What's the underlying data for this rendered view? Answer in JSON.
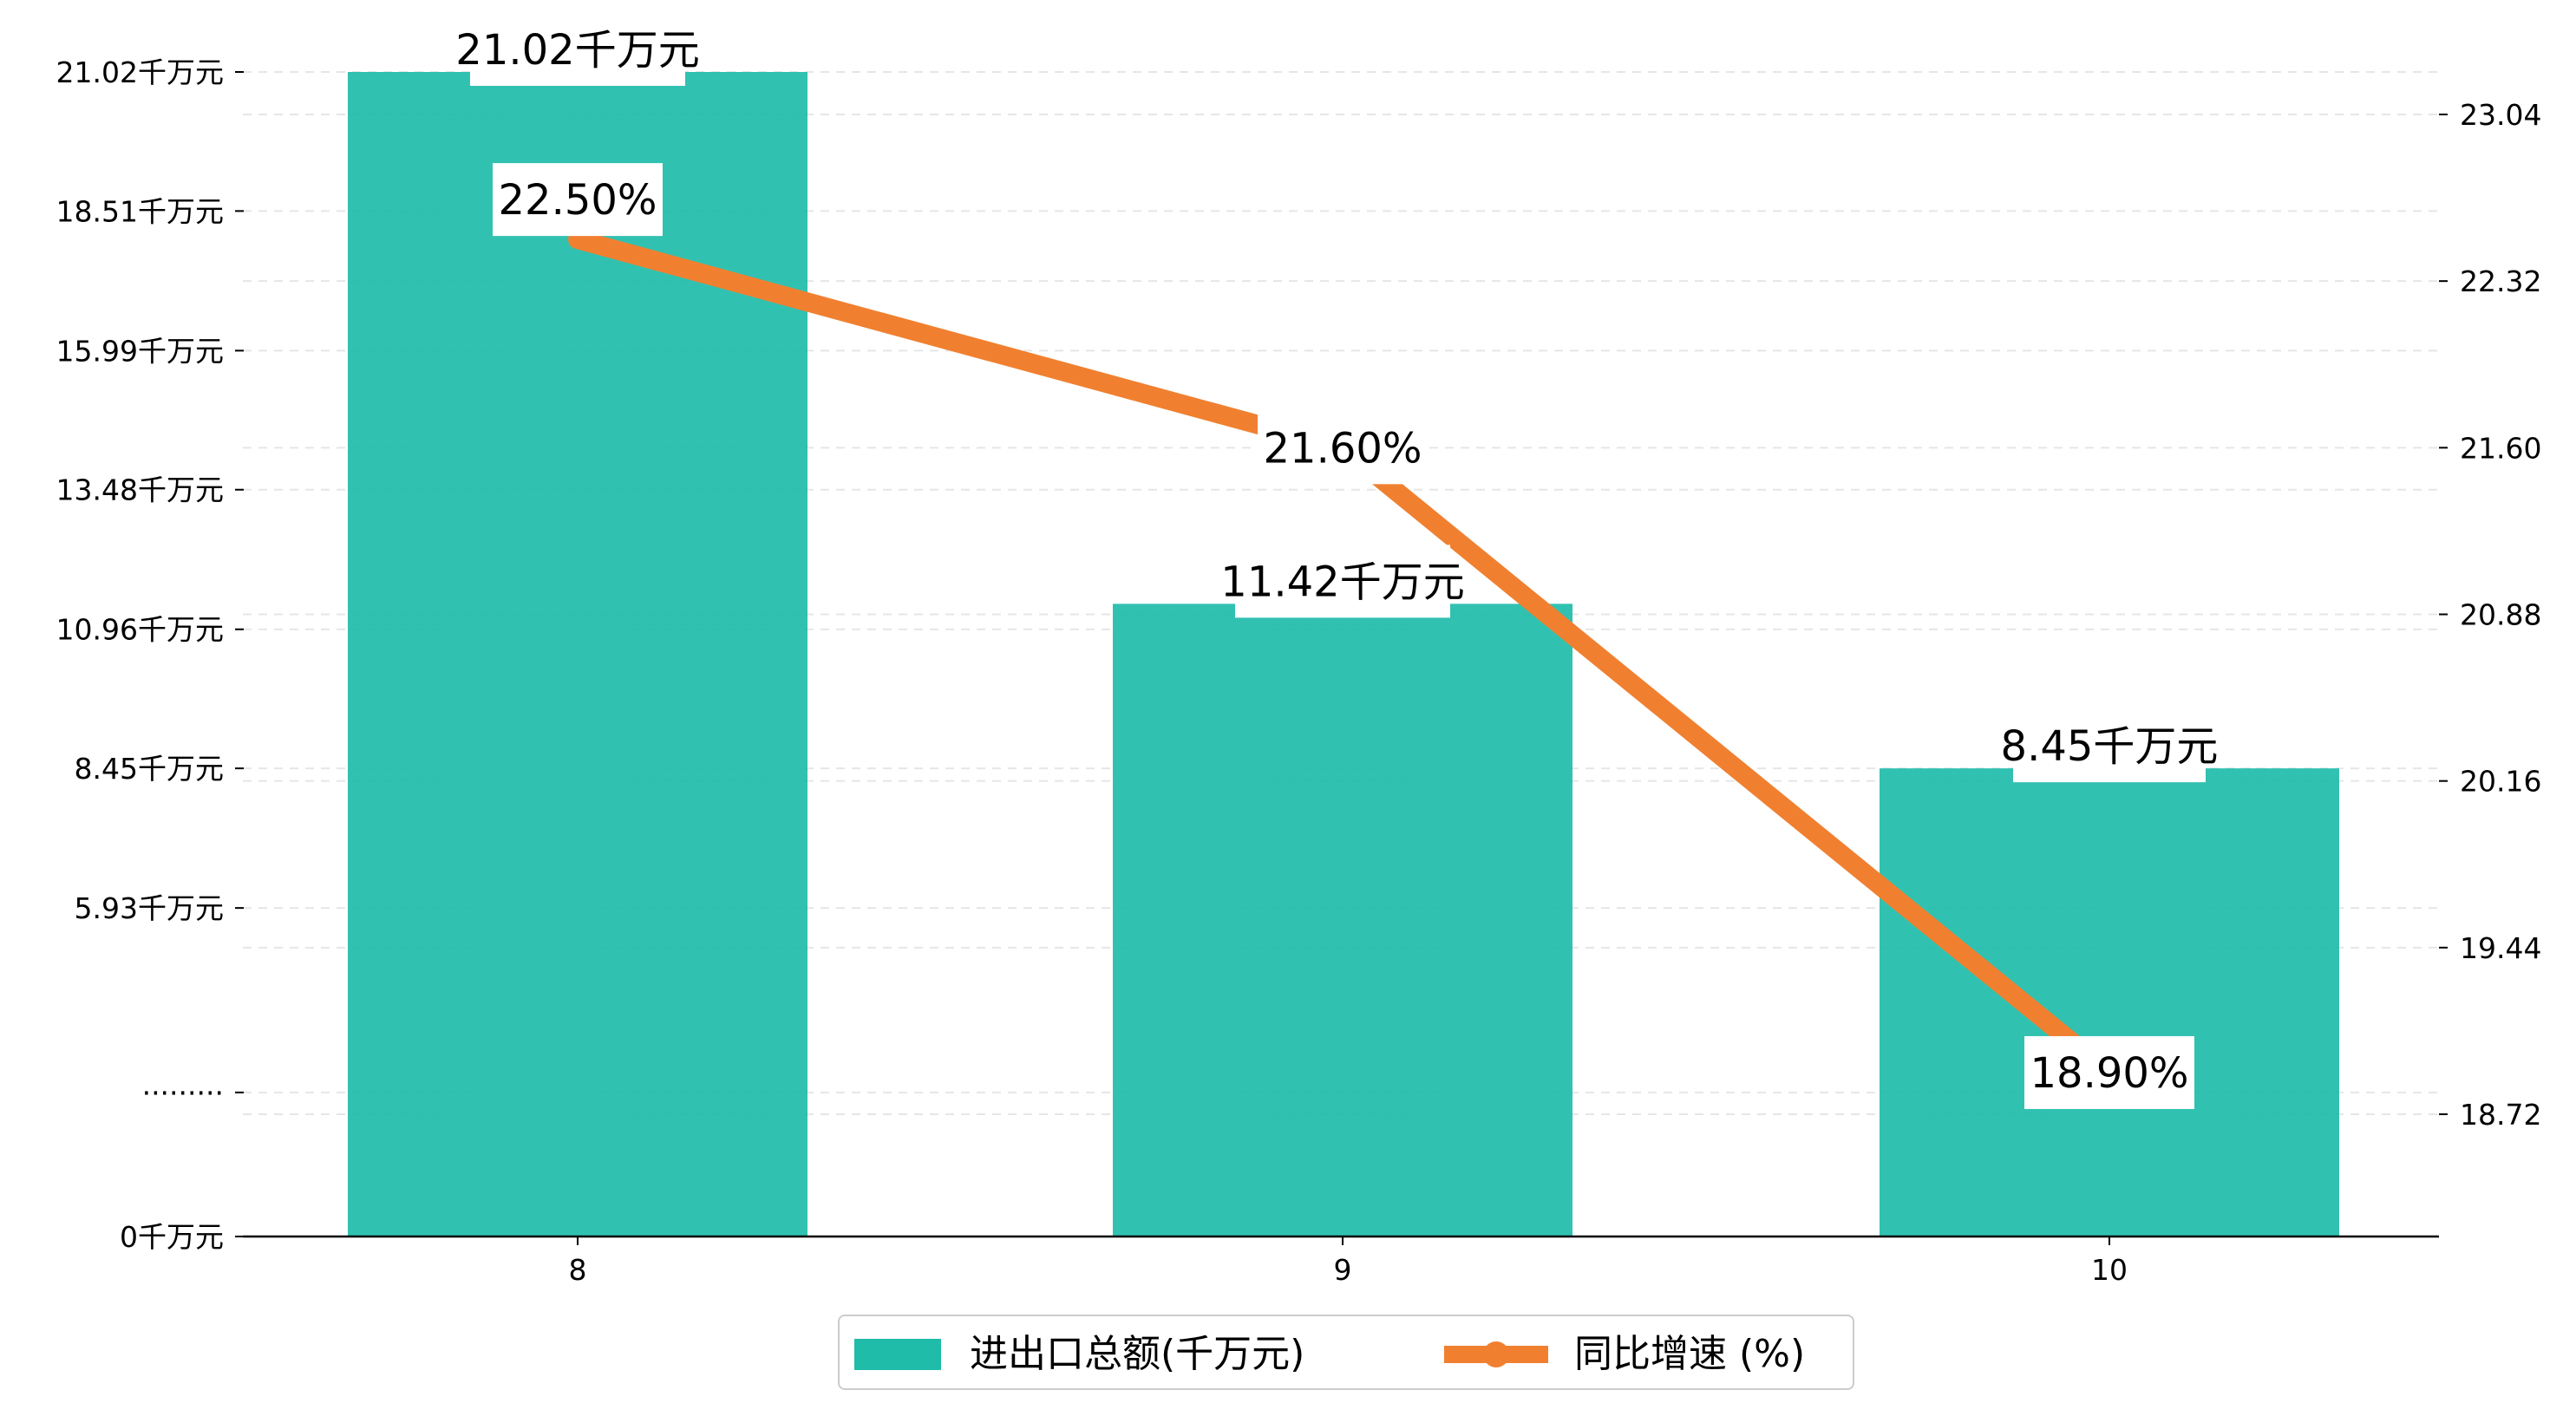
{
  "chart_data": {
    "type": "bar",
    "categories": [
      "8",
      "9",
      "10"
    ],
    "series": [
      {
        "name": "进出口总额(千万元)",
        "kind": "bar",
        "axis": "left",
        "color": "#20BCAA",
        "values": [
          21.02,
          11.42,
          8.45
        ],
        "value_labels": [
          "21.02千万元",
          "11.42千万元",
          "8.45千万元"
        ]
      },
      {
        "name": "同比增速 (%)",
        "kind": "line",
        "axis": "right",
        "color": "#F08030",
        "values": [
          22.5,
          21.6,
          18.9
        ],
        "value_labels": [
          "22.50%",
          "21.60%",
          "18.90%"
        ]
      }
    ],
    "left_axis": {
      "ylim": [
        0,
        21.02
      ],
      "ticks": [
        {
          "value": 0,
          "label": "0千万元"
        },
        {
          "value": 2.6,
          "label": "·········"
        },
        {
          "value": 5.93,
          "label": "5.93千万元"
        },
        {
          "value": 8.45,
          "label": "8.45千万元"
        },
        {
          "value": 10.96,
          "label": "10.96千万元"
        },
        {
          "value": 13.48,
          "label": "13.48千万元"
        },
        {
          "value": 15.99,
          "label": "15.99千万元"
        },
        {
          "value": 18.51,
          "label": "18.51千万元"
        },
        {
          "value": 21.02,
          "label": "21.02千万元"
        }
      ]
    },
    "right_axis": {
      "ylim": [
        18.18,
        23.22
      ],
      "ticks": [
        {
          "value": 18.72,
          "label": "18.72"
        },
        {
          "value": 19.44,
          "label": "19.44"
        },
        {
          "value": 20.16,
          "label": "20.16"
        },
        {
          "value": 20.88,
          "label": "20.88"
        },
        {
          "value": 21.6,
          "label": "21.60"
        },
        {
          "value": 22.32,
          "label": "22.32"
        },
        {
          "value": 23.04,
          "label": "23.04"
        }
      ]
    },
    "title": "",
    "xlabel": "",
    "ylabel": "",
    "grid": "dashed horizontal",
    "legend": "bottom-center"
  }
}
